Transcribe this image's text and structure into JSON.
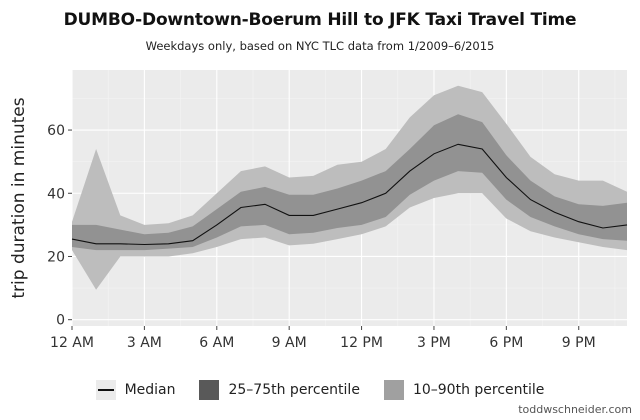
{
  "page": {
    "credit": "toddwschneider.com"
  },
  "chart_data": {
    "type": "area",
    "title": "DUMBO-Downtown-Boerum Hill to JFK Taxi Travel Time",
    "subtitle": "Weekdays only, based on NYC TLC data from 1/2009–6/2015",
    "xlabel": "",
    "ylabel": "trip duration in minutes",
    "x": [
      0,
      1,
      2,
      3,
      4,
      5,
      6,
      7,
      8,
      9,
      10,
      11,
      12,
      13,
      14,
      15,
      16,
      17,
      18,
      19,
      20,
      21,
      22,
      23
    ],
    "xticks": [
      0,
      3,
      6,
      9,
      12,
      15,
      18,
      21
    ],
    "xtick_labels": [
      "12 AM",
      "3 AM",
      "6 AM",
      "9 AM",
      "12 PM",
      "3 PM",
      "6 PM",
      "9 PM"
    ],
    "xlim": [
      0,
      23
    ],
    "ylim": [
      -2,
      79
    ],
    "yticks": [
      0,
      20,
      40,
      60
    ],
    "ytick_labels": [
      "0",
      "20",
      "40",
      "60"
    ],
    "grid": true,
    "legend_position": "bottom",
    "legend": [
      "Median",
      "25–75th percentile",
      "10–90th percentile"
    ],
    "series": [
      {
        "name": "Median",
        "role": "line",
        "values": [
          25.5,
          24,
          24,
          23.8,
          24,
          25,
          30,
          35.5,
          36.5,
          33,
          33,
          35,
          37,
          40,
          47,
          52.5,
          55.5,
          54,
          45,
          38,
          34,
          31,
          29,
          30
        ]
      },
      {
        "name": "25–75th percentile",
        "role": "band",
        "lower": [
          23,
          22,
          22,
          22,
          22.5,
          23,
          26,
          29.5,
          30,
          27,
          27.5,
          29,
          30,
          32.5,
          39.5,
          44,
          47,
          46.5,
          38,
          32.5,
          29.5,
          27,
          25.5,
          25
        ],
        "upper": [
          30,
          30,
          28.5,
          27,
          27.5,
          29.5,
          35,
          40.5,
          42,
          39.5,
          39.5,
          41.5,
          44,
          47,
          54,
          61.5,
          65,
          62.5,
          52,
          44,
          39,
          36.5,
          36,
          37
        ]
      },
      {
        "name": "10–90th percentile",
        "role": "band",
        "lower": [
          22,
          9.5,
          20,
          20,
          20,
          21,
          23,
          25.5,
          26,
          23.5,
          24,
          25.5,
          27,
          29.5,
          35.5,
          38.5,
          40,
          40,
          32,
          28,
          26,
          24.5,
          23,
          22
        ],
        "upper": [
          31,
          54,
          33,
          30,
          30.5,
          33,
          40,
          47,
          48.5,
          45,
          45.5,
          49,
          50,
          54,
          64,
          71,
          74,
          72,
          62,
          51.5,
          46,
          44,
          44,
          40.5
        ]
      }
    ],
    "colors": {
      "panel_bg": "#ebebeb",
      "grid_major": "#ffffff",
      "grid_minor": "#f4f4f4",
      "band_outer": "#bdbdbd",
      "band_inner": "#929292",
      "median": "#111111",
      "legend_outer_swatch": "#a0a0a0",
      "legend_inner_swatch": "#595959"
    }
  }
}
